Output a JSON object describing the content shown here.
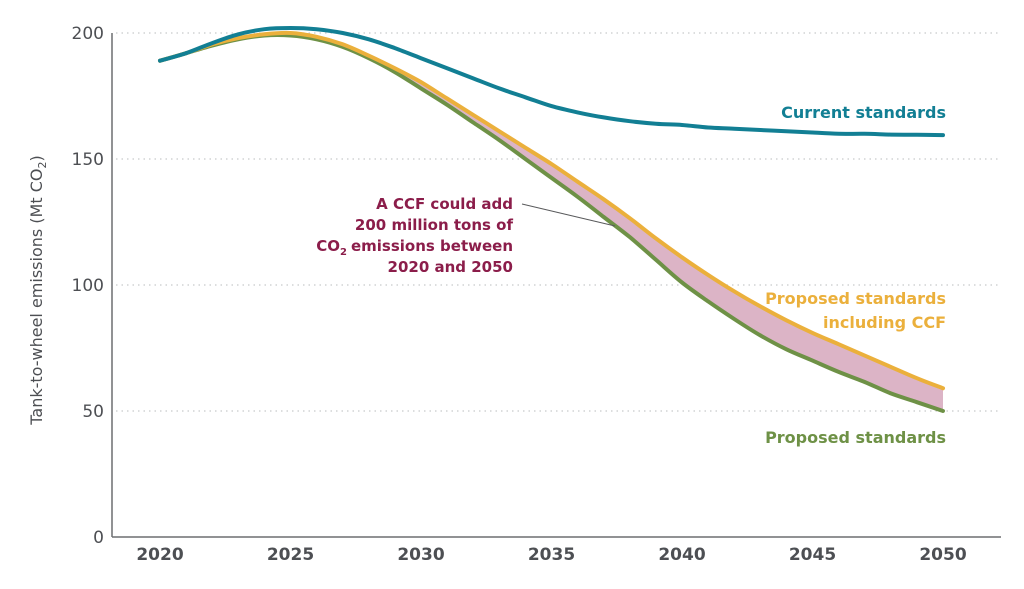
{
  "chart_data": {
    "type": "line",
    "title": "",
    "xlabel": "",
    "ylabel": "Tank-to-wheel emissions (Mt CO",
    "ylabel_subscript": "2",
    "ylabel_close": ")",
    "xlim": [
      2018.7,
      2052.2
    ],
    "ylim": [
      0,
      200
    ],
    "xticks": [
      2020,
      2025,
      2030,
      2035,
      2040,
      2045,
      2050
    ],
    "xtick_labels": [
      "2020",
      "2025",
      "2030",
      "2035",
      "2040",
      "2045",
      "2050"
    ],
    "yticks": [
      0,
      50,
      100,
      150,
      200
    ],
    "ytick_labels": [
      "0",
      "50",
      "100",
      "150",
      "200"
    ],
    "grid": "horizontal-dotted",
    "x": [
      2020,
      2021,
      2022,
      2023,
      2024,
      2025,
      2026,
      2027,
      2028,
      2029,
      2030,
      2031,
      2032,
      2033,
      2034,
      2035,
      2036,
      2037,
      2038,
      2039,
      2040,
      2041,
      2042,
      2043,
      2044,
      2045,
      2046,
      2047,
      2048,
      2049,
      2050
    ],
    "series": [
      {
        "name": "Current standards",
        "color": "#127f94",
        "values": [
          189,
          192,
          196,
          199.5,
          201.5,
          202,
          201.5,
          200,
          197.5,
          194,
          190,
          186,
          182,
          178,
          174.5,
          171,
          168.5,
          166.5,
          165,
          164,
          163.5,
          162.5,
          162,
          161.5,
          161,
          160.5,
          160,
          160,
          159.7,
          159.6,
          159.5
        ]
      },
      {
        "name": "Proposed standards including CCF",
        "color": "#ebb03c",
        "values": [
          189,
          192,
          195.5,
          198,
          199.5,
          200,
          198.5,
          195.5,
          191,
          186,
          180.5,
          174,
          167.5,
          161,
          154.5,
          148,
          141,
          134,
          126.5,
          118.5,
          111,
          104,
          97.5,
          91.5,
          86,
          81,
          76.5,
          72,
          67.5,
          63,
          59
        ]
      },
      {
        "name": "Proposed standards",
        "color": "#6e9146",
        "values": [
          189,
          192,
          195,
          197.5,
          199,
          199,
          197.5,
          194.5,
          190,
          184.5,
          178,
          171.5,
          164.5,
          157.5,
          150,
          142.5,
          135,
          127,
          119,
          110,
          101,
          93.5,
          86.5,
          80,
          74.5,
          70,
          65.5,
          61.5,
          57,
          53.5,
          50
        ]
      }
    ],
    "fill_between": {
      "upper": "Proposed standards including CCF",
      "lower": "Proposed standards",
      "color": "#dcb4c6"
    },
    "series_labels": [
      {
        "lines": [
          "Current standards"
        ],
        "color": "#127f94"
      },
      {
        "lines": [
          "Proposed standards",
          "including CCF"
        ],
        "color": "#ebb03c"
      },
      {
        "lines": [
          "Proposed standards"
        ],
        "color": "#6e9146"
      }
    ],
    "annotation": {
      "lines": [
        "A CCF could add",
        "200 million tons of",
        "CO",
        "emissions between",
        "2020 and 2050"
      ],
      "line3_sub": "2",
      "color": "#8b1d4a",
      "points_to": {
        "x": 2037,
        "y": 125
      }
    }
  }
}
